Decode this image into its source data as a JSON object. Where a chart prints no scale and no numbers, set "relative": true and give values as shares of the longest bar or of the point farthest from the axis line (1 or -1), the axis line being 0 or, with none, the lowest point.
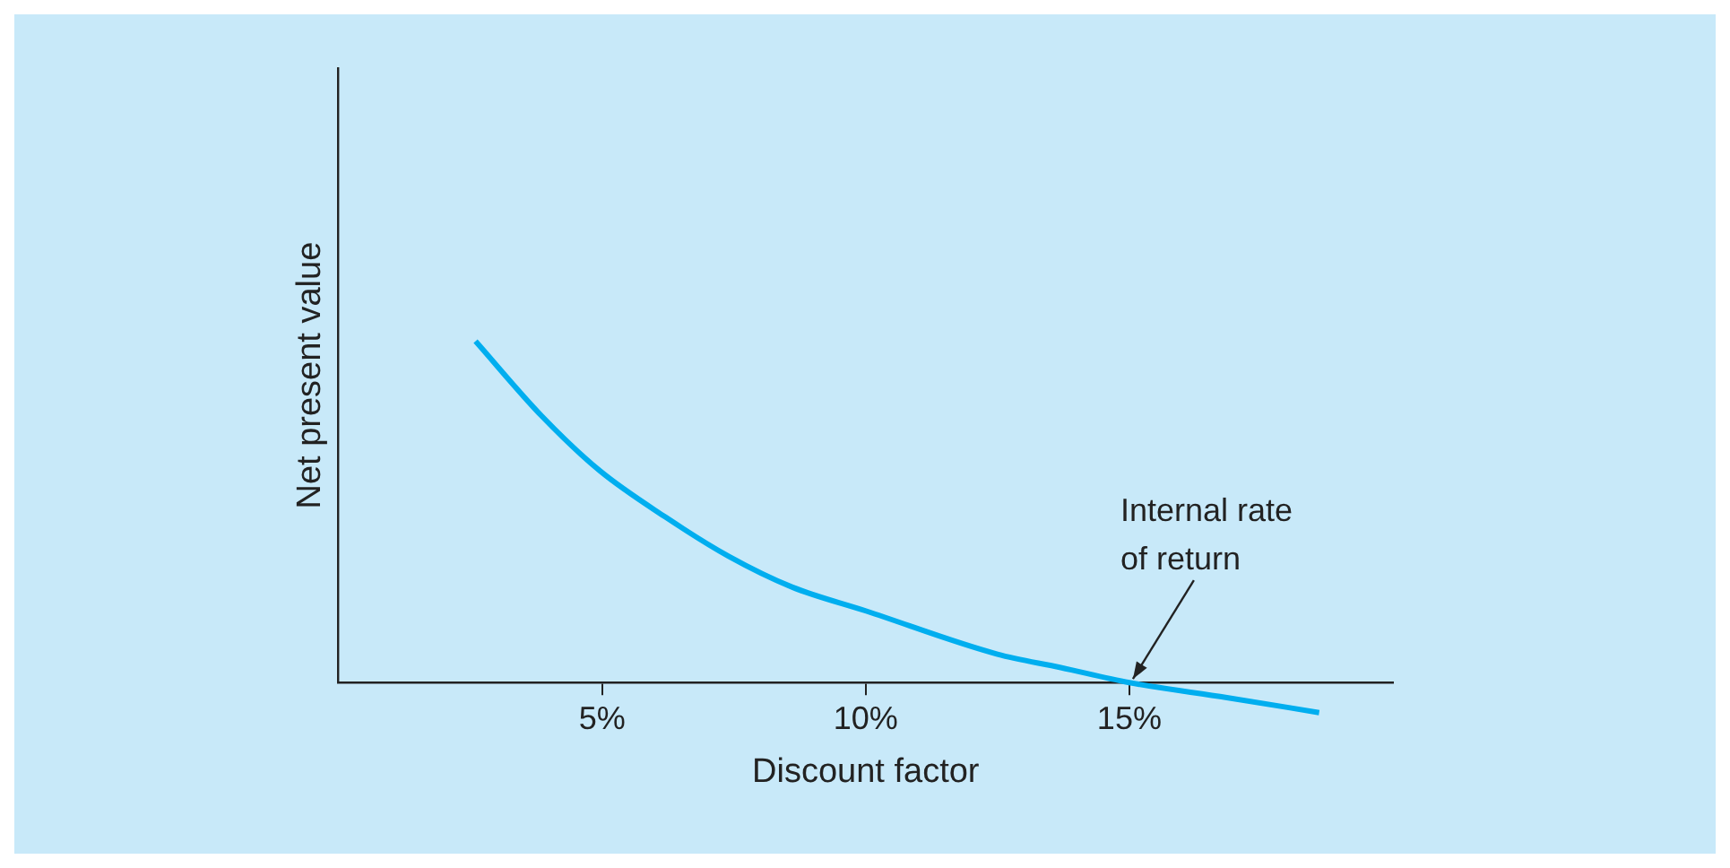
{
  "chart_data": {
    "type": "line",
    "xlabel": "Discount factor",
    "ylabel": "Net present value",
    "relative": true,
    "color": "#00aeef",
    "x": [
      2.6,
      3.86,
      4.96,
      6.2,
      7.4,
      8.6,
      10,
      12.5,
      13.7,
      15,
      16.85,
      18.6
    ],
    "values": [
      1,
      0.78,
      0.62,
      0.485,
      0.37,
      0.28,
      0.21,
      0.083,
      0.044,
      0,
      -0.044,
      -0.088
    ],
    "xlim": [
      0,
      20
    ],
    "xticks": [
      {
        "value": 5,
        "label": "5%"
      },
      {
        "value": 10,
        "label": "10%"
      },
      {
        "value": 15,
        "label": "15%"
      }
    ],
    "grid": false,
    "legend": false,
    "marker": "none",
    "line_style": "solid",
    "annotations": [
      {
        "text": "Internal rate\nof return",
        "x": 15,
        "y": 0
      }
    ]
  }
}
